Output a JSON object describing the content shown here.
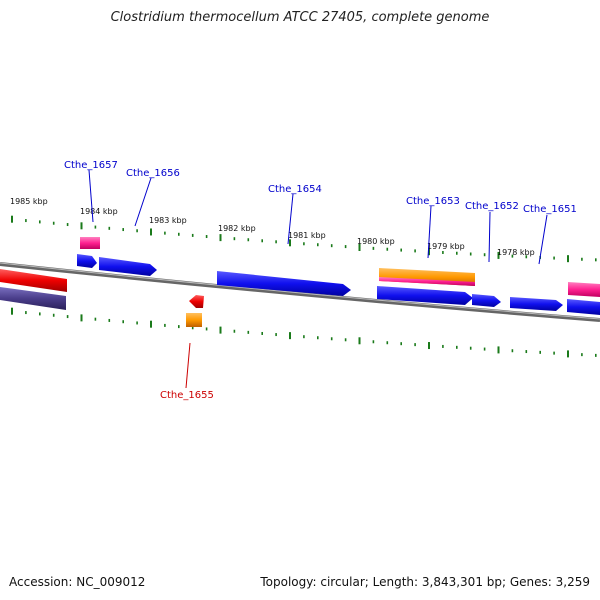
{
  "title": "Clostridium thermocellum ATCC 27405, complete genome",
  "footer": {
    "accession": "Accession: NC_009012",
    "stats": "Topology: circular; Length: 3,843,301 bp; Genes: 3,259"
  },
  "scale_labels": [
    "1985 kbp",
    "1984 kbp",
    "1983 kbp",
    "1982 kbp",
    "1981 kbp",
    "1980 kbp",
    "1979 kbp",
    "1978 kbp"
  ],
  "gene_labels": [
    "Cthe_1657",
    "Cthe_1656",
    "Cthe_1654",
    "Cthe_1653",
    "Cthe_1652",
    "Cthe_1651",
    "Cthe_1655"
  ],
  "colors": {
    "forward_gene": "#1a1aff",
    "reverse_gene": "#ff1a1a",
    "label_forward": "#0000cc",
    "label_reverse": "#cc0000",
    "tick": "#1a7a1a",
    "backbone": "#888888",
    "magenta": "#ff3d9a",
    "orange": "#ff9900",
    "purple": "#4a3d8a"
  }
}
